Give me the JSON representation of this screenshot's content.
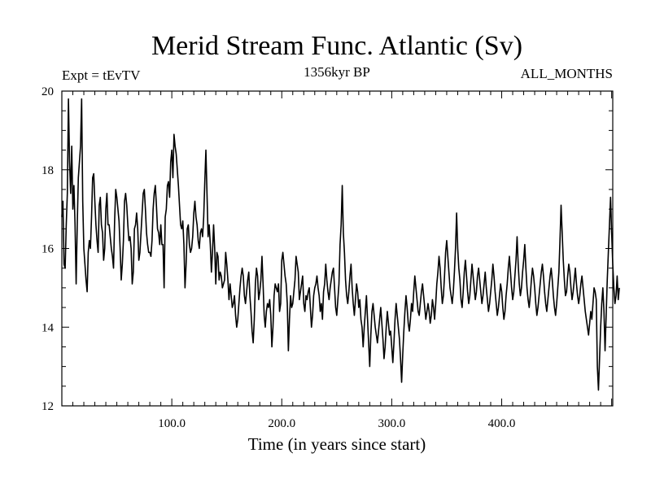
{
  "chart_data": {
    "type": "line",
    "title": "Merid Stream Func. Atlantic (Sv)",
    "left_label": "Expt = tEvTV",
    "center_label": "1356kyr BP",
    "right_label": "ALL_MONTHS",
    "xlabel": "Time (in years since start)",
    "ylabel": "",
    "xlim": [
      0,
      501
    ],
    "ylim": [
      12,
      20
    ],
    "x_ticks": [
      100,
      200,
      300,
      400
    ],
    "x_tick_labels": [
      "100.0",
      "200.0",
      "300.0",
      "400.0"
    ],
    "y_ticks": [
      12,
      14,
      16,
      18,
      20
    ],
    "y_tick_labels": [
      "12",
      "14",
      "16",
      "18",
      "20"
    ],
    "grid": false,
    "colors": {
      "line": "#000000",
      "axis": "#000000",
      "background": "#ffffff"
    },
    "series": [
      {
        "name": "Merid Stream Func. Atlantic",
        "x_start": 0,
        "x_step": 1,
        "values": [
          16.8,
          17.2,
          15.6,
          15.5,
          16.6,
          17.4,
          19.8,
          18.2,
          17.4,
          18.6,
          17.0,
          17.6,
          16.6,
          15.1,
          16.6,
          17.8,
          18.2,
          18.6,
          19.8,
          17.2,
          16.0,
          15.6,
          15.2,
          14.9,
          15.9,
          16.2,
          16.0,
          16.8,
          17.8,
          17.9,
          17.2,
          16.6,
          16.2,
          15.9,
          17.1,
          17.3,
          16.6,
          16.4,
          15.7,
          16.0,
          17.0,
          17.4,
          16.6,
          16.6,
          16.3,
          16.0,
          15.8,
          15.5,
          16.7,
          17.5,
          17.3,
          17.0,
          16.7,
          16.0,
          15.2,
          15.6,
          16.2,
          17.2,
          17.4,
          17.1,
          16.6,
          16.2,
          16.3,
          16.0,
          15.1,
          15.4,
          16.5,
          16.6,
          16.9,
          16.5,
          15.7,
          15.9,
          16.4,
          16.9,
          17.4,
          17.5,
          17.0,
          16.4,
          16.1,
          15.9,
          15.9,
          15.8,
          16.2,
          17.0,
          17.4,
          17.6,
          17.1,
          16.5,
          16.4,
          16.1,
          16.6,
          16.1,
          16.1,
          15.0,
          16.8,
          17.0,
          17.6,
          17.7,
          17.3,
          18.2,
          18.5,
          17.8,
          18.9,
          18.6,
          18.4,
          18.0,
          17.6,
          17.1,
          16.6,
          16.5,
          16.7,
          16.1,
          15.0,
          15.6,
          16.5,
          16.6,
          16.1,
          15.9,
          16.0,
          16.3,
          16.9,
          17.2,
          16.8,
          16.6,
          16.2,
          16.0,
          16.4,
          16.5,
          16.3,
          16.8,
          17.7,
          18.5,
          17.4,
          16.3,
          16.6,
          16.1,
          15.4,
          15.9,
          16.6,
          16.0,
          15.1,
          15.9,
          15.8,
          15.2,
          15.4,
          15.3,
          15.0,
          15.1,
          15.2,
          15.9,
          15.6,
          15.2,
          14.7,
          15.1,
          14.8,
          14.5,
          14.6,
          14.8,
          14.3,
          14.0,
          14.2,
          14.6,
          15.0,
          15.3,
          15.5,
          15.3,
          14.8,
          14.6,
          14.9,
          15.2,
          15.4,
          14.8,
          14.4,
          13.9,
          13.6,
          14.2,
          15.1,
          15.5,
          15.3,
          14.7,
          14.9,
          15.2,
          15.8,
          15.1,
          14.3,
          14.0,
          14.4,
          14.6,
          14.5,
          14.7,
          14.3,
          13.5,
          14.0,
          14.8,
          15.1,
          15.0,
          14.9,
          15.1,
          14.4,
          14.6,
          15.7,
          15.9,
          15.6,
          15.3,
          15.1,
          14.6,
          13.4,
          14.2,
          14.8,
          14.5,
          14.6,
          14.9,
          15.2,
          15.8,
          15.6,
          15.4,
          14.7,
          14.9,
          15.1,
          15.3,
          14.6,
          14.4,
          14.8,
          14.7,
          14.9,
          15.0,
          14.5,
          14.0,
          14.3,
          14.8,
          15.0,
          15.1,
          15.3,
          15.0,
          14.8,
          14.4,
          14.6,
          14.2,
          14.9,
          15.1,
          15.6,
          15.2,
          14.9,
          14.7,
          15.0,
          15.2,
          15.4,
          15.5,
          15.0,
          14.5,
          14.3,
          14.7,
          15.1,
          16.1,
          16.6,
          17.6,
          16.4,
          15.9,
          15.2,
          14.8,
          14.6,
          14.9,
          15.3,
          15.6,
          15.0,
          14.6,
          14.3,
          14.7,
          15.1,
          14.9,
          14.5,
          14.7,
          14.2,
          14.0,
          13.5,
          14.0,
          14.4,
          14.8,
          14.2,
          13.6,
          13.0,
          13.8,
          14.4,
          14.6,
          14.3,
          14.0,
          13.8,
          13.6,
          13.9,
          14.2,
          14.5,
          14.1,
          13.7,
          13.2,
          13.5,
          14.0,
          14.4,
          14.1,
          13.8,
          13.9,
          13.5,
          13.1,
          13.6,
          14.2,
          14.6,
          14.3,
          14.0,
          13.7,
          13.2,
          12.6,
          13.3,
          13.9,
          14.4,
          14.8,
          14.5,
          14.1,
          13.9,
          14.2,
          14.6,
          14.4,
          14.9,
          15.3,
          15.0,
          14.7,
          14.4,
          14.3,
          14.6,
          14.9,
          15.1,
          14.8,
          14.5,
          14.2,
          14.4,
          14.6,
          14.4,
          14.1,
          14.3,
          14.7,
          14.5,
          14.2,
          14.6,
          15.1,
          15.4,
          15.8,
          15.5,
          15.0,
          14.6,
          14.8,
          15.3,
          15.9,
          16.2,
          15.8,
          15.4,
          15.0,
          14.8,
          14.6,
          14.9,
          15.4,
          16.0,
          16.9,
          16.0,
          15.5,
          15.2,
          14.7,
          14.5,
          14.9,
          15.4,
          15.7,
          15.3,
          14.9,
          14.6,
          14.8,
          15.2,
          15.6,
          15.3,
          15.0,
          14.7,
          14.9,
          15.3,
          15.5,
          15.2,
          14.9,
          14.6,
          14.8,
          15.1,
          15.4,
          15.0,
          14.7,
          14.4,
          14.6,
          14.9,
          15.2,
          15.6,
          15.3,
          14.9,
          14.6,
          14.3,
          14.5,
          14.8,
          15.1,
          14.9,
          14.5,
          14.2,
          14.4,
          14.8,
          15.1,
          15.5,
          15.8,
          15.4,
          15.0,
          14.7,
          14.9,
          15.3,
          15.7,
          16.3,
          15.6,
          15.1,
          14.8,
          15.0,
          15.4,
          15.7,
          16.1,
          15.5,
          15.0,
          14.7,
          14.5,
          14.8,
          15.2,
          15.5,
          15.3,
          15.0,
          14.6,
          14.3,
          14.5,
          14.8,
          15.1,
          15.4,
          15.6,
          15.3,
          14.9,
          14.6,
          14.4,
          14.7,
          15.0,
          15.3,
          15.5,
          15.2,
          14.8,
          14.5,
          14.3,
          14.6,
          15.0,
          15.4,
          16.2,
          17.1,
          16.4,
          15.7,
          15.2,
          14.8,
          14.9,
          15.3,
          15.6,
          15.4,
          15.0,
          14.7,
          14.9,
          15.2,
          15.5,
          15.1,
          14.8,
          14.6,
          14.8,
          15.1,
          15.3,
          15.0,
          14.7,
          14.4,
          14.2,
          14.0,
          13.8,
          14.1,
          14.4,
          14.2,
          14.6,
          15.0,
          14.9,
          14.7,
          13.0,
          12.4,
          13.2,
          14.0,
          14.6,
          15.0,
          14.4,
          13.4,
          14.3,
          15.2,
          15.9,
          16.6,
          17.3,
          16.4,
          15.6,
          15.0,
          14.6,
          14.8,
          15.3,
          14.7,
          15.0
        ]
      }
    ]
  }
}
